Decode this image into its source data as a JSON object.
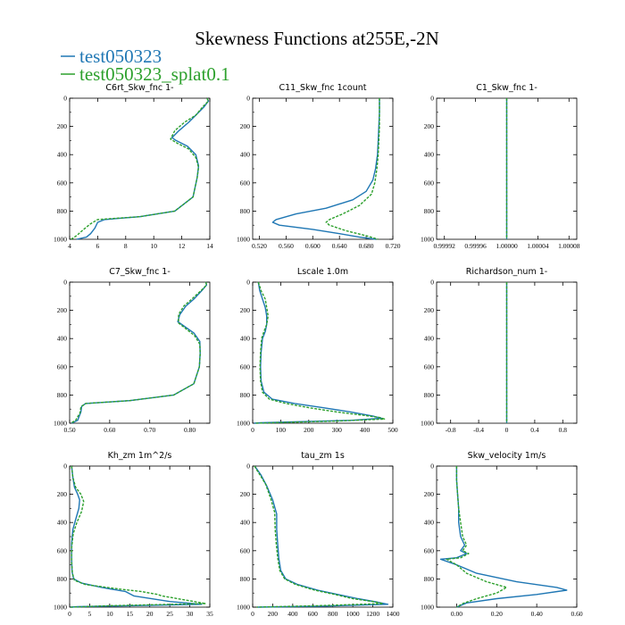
{
  "figure": {
    "title": "Skewness Functions at255E,-2N"
  },
  "legend": [
    {
      "label": "test050323",
      "color": "#1f77b4"
    },
    {
      "label": "test050323_splat0.1",
      "color": "#2ca02c"
    }
  ],
  "chart_data": [
    {
      "type": "line",
      "title": "C6rt_Skw_fnc  1-",
      "xlim": [
        4,
        14
      ],
      "ylim": [
        0,
        1000
      ],
      "yinverted": true,
      "xticks": [
        4,
        6,
        8,
        10,
        12,
        14
      ],
      "xticklabels": [
        "4",
        "6",
        "8",
        "10",
        "12",
        "14"
      ],
      "yticks": [
        0,
        200,
        400,
        600,
        800,
        1000
      ],
      "yticklabels": [
        "0",
        "200",
        "400",
        "600",
        "800",
        "1000"
      ],
      "series": [
        {
          "name": "test050323",
          "color": "#1f77b4",
          "x": [
            13.8,
            13.9,
            13.6,
            13.0,
            12.5,
            11.8,
            11.3,
            11.6,
            12.4,
            13.0,
            13.2,
            13.1,
            12.8,
            11.5,
            9.0,
            6.5,
            6.0,
            5.8,
            5.5,
            5.2,
            4.5
          ],
          "y": [
            0,
            20,
            60,
            120,
            170,
            230,
            280,
            300,
            340,
            400,
            480,
            560,
            700,
            800,
            840,
            860,
            880,
            920,
            960,
            985,
            1000
          ]
        },
        {
          "name": "test050323_splat0.1",
          "color": "#2ca02c",
          "x": [
            13.8,
            13.9,
            13.5,
            13.0,
            12.2,
            11.5,
            11.2,
            11.7,
            12.5,
            13.0,
            13.2,
            13.1,
            12.8,
            11.5,
            9.0,
            6.0,
            5.5,
            5.0,
            4.6,
            4.3,
            4.1
          ],
          "y": [
            0,
            20,
            60,
            120,
            170,
            230,
            290,
            320,
            360,
            420,
            490,
            560,
            700,
            800,
            840,
            860,
            890,
            930,
            965,
            988,
            1000
          ]
        }
      ]
    },
    {
      "type": "line",
      "title": "C11_Skw_fnc  1count",
      "xlim": [
        0.51,
        0.72
      ],
      "ylim": [
        0,
        1000
      ],
      "yinverted": true,
      "xticks": [
        0.52,
        0.56,
        0.6,
        0.64,
        0.68,
        0.72
      ],
      "xticklabels": [
        "0.520",
        "0.560",
        "0.600",
        "0.640",
        "0.680",
        "0.720"
      ],
      "yticks": [
        0,
        200,
        400,
        600,
        800,
        1000
      ],
      "yticklabels": [
        "0",
        "200",
        "400",
        "600",
        "800",
        "1000"
      ],
      "series": [
        {
          "name": "test050323",
          "color": "#1f77b4",
          "x": [
            0.7,
            0.7,
            0.699,
            0.698,
            0.697,
            0.694,
            0.69,
            0.68,
            0.66,
            0.62,
            0.575,
            0.545,
            0.54,
            0.55,
            0.6,
            0.64,
            0.67,
            0.695
          ],
          "y": [
            0,
            100,
            200,
            300,
            400,
            500,
            580,
            660,
            720,
            780,
            820,
            860,
            880,
            900,
            930,
            960,
            985,
            1000
          ]
        },
        {
          "name": "test050323_splat0.1",
          "color": "#2ca02c",
          "x": [
            0.7,
            0.7,
            0.7,
            0.699,
            0.698,
            0.696,
            0.693,
            0.688,
            0.67,
            0.645,
            0.625,
            0.62,
            0.625,
            0.65,
            0.68,
            0.698
          ],
          "y": [
            0,
            100,
            200,
            300,
            400,
            500,
            600,
            680,
            760,
            820,
            860,
            880,
            900,
            940,
            975,
            1000
          ]
        }
      ]
    },
    {
      "type": "line",
      "title": "C1_Skw_fnc  1-",
      "xlim": [
        0.99991,
        1.00009
      ],
      "ylim": [
        0,
        1000
      ],
      "yinverted": true,
      "xticks": [
        0.99992,
        0.99996,
        1.0,
        1.00004,
        1.00008
      ],
      "xticklabels": [
        "0.99992",
        "0.99996",
        "1.00000",
        "1.00004",
        "1.00008"
      ],
      "yticks": [
        0,
        200,
        400,
        600,
        800,
        1000
      ],
      "yticklabels": [
        "0",
        "200",
        "400",
        "600",
        "800",
        "1000"
      ],
      "series": [
        {
          "name": "test050323",
          "color": "#1f77b4",
          "x": [
            1.0,
            1.0
          ],
          "y": [
            0,
            1000
          ]
        },
        {
          "name": "test050323_splat0.1",
          "color": "#2ca02c",
          "x": [
            1.0,
            1.0
          ],
          "y": [
            0,
            1000
          ]
        }
      ]
    },
    {
      "type": "line",
      "title": "C7_Skw_fnc  1-",
      "xlim": [
        0.5,
        0.85
      ],
      "ylim": [
        0,
        1000
      ],
      "yinverted": true,
      "xticks": [
        0.5,
        0.6,
        0.7,
        0.8
      ],
      "xticklabels": [
        "0.50",
        "0.60",
        "0.70",
        "0.80"
      ],
      "yticks": [
        0,
        200,
        400,
        600,
        800,
        1000
      ],
      "yticklabels": [
        "0",
        "200",
        "400",
        "600",
        "800",
        "1000"
      ],
      "series": [
        {
          "name": "test050323",
          "color": "#1f77b4",
          "x": [
            0.84,
            0.842,
            0.83,
            0.81,
            0.79,
            0.775,
            0.77,
            0.785,
            0.81,
            0.825,
            0.826,
            0.824,
            0.81,
            0.76,
            0.65,
            0.54,
            0.53,
            0.528,
            0.52,
            0.505
          ],
          "y": [
            0,
            20,
            60,
            120,
            170,
            230,
            280,
            310,
            360,
            420,
            500,
            600,
            720,
            800,
            840,
            860,
            880,
            920,
            980,
            1000
          ]
        },
        {
          "name": "test050323_splat0.1",
          "color": "#2ca02c",
          "x": [
            0.84,
            0.842,
            0.828,
            0.805,
            0.785,
            0.772,
            0.772,
            0.79,
            0.812,
            0.825,
            0.826,
            0.824,
            0.81,
            0.76,
            0.65,
            0.54,
            0.528,
            0.526,
            0.515,
            0.503
          ],
          "y": [
            0,
            20,
            60,
            120,
            170,
            230,
            290,
            330,
            380,
            440,
            510,
            600,
            720,
            800,
            840,
            860,
            885,
            925,
            980,
            1000
          ]
        }
      ]
    },
    {
      "type": "line",
      "title": "Lscale  1.0m",
      "xlim": [
        0,
        500
      ],
      "ylim": [
        0,
        1000
      ],
      "yinverted": true,
      "xticks": [
        0,
        100,
        200,
        300,
        400,
        500
      ],
      "xticklabels": [
        "0",
        "100",
        "200",
        "300",
        "400",
        "500"
      ],
      "yticks": [
        0,
        200,
        400,
        600,
        800,
        1000
      ],
      "yticklabels": [
        "0",
        "200",
        "400",
        "600",
        "800",
        "1000"
      ],
      "series": [
        {
          "name": "test050323",
          "color": "#1f77b4",
          "x": [
            20,
            25,
            35,
            45,
            50,
            50,
            45,
            35,
            30,
            28,
            30,
            40,
            70,
            150,
            250,
            350,
            430,
            460,
            350,
            150,
            30,
            5
          ],
          "y": [
            0,
            60,
            120,
            180,
            240,
            300,
            350,
            400,
            500,
            600,
            700,
            780,
            830,
            860,
            890,
            920,
            950,
            965,
            980,
            990,
            997,
            1000
          ]
        },
        {
          "name": "test050323_splat0.1",
          "color": "#2ca02c",
          "x": [
            20,
            30,
            45,
            50,
            55,
            50,
            40,
            32,
            28,
            26,
            28,
            35,
            60,
            120,
            200,
            300,
            400,
            455,
            470,
            300,
            100,
            10
          ],
          "y": [
            0,
            60,
            120,
            180,
            240,
            300,
            350,
            400,
            500,
            600,
            700,
            780,
            830,
            860,
            890,
            920,
            945,
            960,
            970,
            985,
            995,
            1000
          ]
        }
      ]
    },
    {
      "type": "line",
      "title": "Richardson_num  1-",
      "xlim": [
        -1,
        1
      ],
      "ylim": [
        0,
        1000
      ],
      "yinverted": true,
      "xticks": [
        -0.8,
        -0.4,
        0,
        0.4,
        0.8
      ],
      "xticklabels": [
        "-0.8",
        "-0.4",
        "0",
        "0.4",
        "0.8"
      ],
      "yticks": [
        0,
        200,
        400,
        600,
        800,
        1000
      ],
      "yticklabels": [
        "0",
        "200",
        "400",
        "600",
        "800",
        "1000"
      ],
      "series": [
        {
          "name": "test050323",
          "color": "#1f77b4",
          "x": [
            0,
            0
          ],
          "y": [
            0,
            1000
          ]
        },
        {
          "name": "test050323_splat0.1",
          "color": "#2ca02c",
          "x": [
            0,
            0
          ],
          "y": [
            0,
            1000
          ]
        }
      ]
    },
    {
      "type": "line",
      "title": "Kh_zm  1m^2/s",
      "xlim": [
        0,
        35
      ],
      "ylim": [
        0,
        1000
      ],
      "yinverted": true,
      "xticks": [
        0,
        5,
        10,
        15,
        20,
        25,
        30,
        35
      ],
      "xticklabels": [
        "0",
        "5",
        "10",
        "15",
        "20",
        "25",
        "30",
        "35"
      ],
      "yticks": [
        0,
        200,
        400,
        600,
        800,
        1000
      ],
      "yticklabels": [
        "0",
        "200",
        "400",
        "600",
        "800",
        "1000"
      ],
      "series": [
        {
          "name": "test050323",
          "color": "#1f77b4",
          "x": [
            0.5,
            0.8,
            1.2,
            2.0,
            2.5,
            2.3,
            1.5,
            0.8,
            0.5,
            0.5,
            0.6,
            1.0,
            3.0,
            8.0,
            14.0,
            16.0,
            25.0,
            33.0,
            15.0,
            2.0,
            0.2
          ],
          "y": [
            0,
            80,
            150,
            200,
            240,
            300,
            380,
            450,
            550,
            650,
            750,
            800,
            830,
            860,
            890,
            920,
            960,
            980,
            990,
            997,
            1000
          ]
        },
        {
          "name": "test050323_splat0.1",
          "color": "#2ca02c",
          "x": [
            0.5,
            0.8,
            1.5,
            2.8,
            3.5,
            3.0,
            1.8,
            0.9,
            0.5,
            0.5,
            0.7,
            1.2,
            4.0,
            12.0,
            18.0,
            22.0,
            23.0,
            30.0,
            34.0,
            10.0,
            0.3
          ],
          "y": [
            0,
            80,
            150,
            200,
            250,
            320,
            400,
            480,
            580,
            680,
            760,
            810,
            840,
            870,
            890,
            910,
            920,
            955,
            975,
            990,
            1000
          ]
        }
      ]
    },
    {
      "type": "line",
      "title": "tau_zm  1s",
      "xlim": [
        0,
        1400
      ],
      "ylim": [
        0,
        1000
      ],
      "yinverted": true,
      "xticks": [
        0,
        200,
        400,
        600,
        800,
        1000,
        1200,
        1400
      ],
      "xticklabels": [
        "0",
        "200",
        "400",
        "600",
        "800",
        "1000",
        "1200",
        "1400"
      ],
      "yticks": [
        0,
        200,
        400,
        600,
        800,
        1000
      ],
      "yticklabels": [
        "0",
        "200",
        "400",
        "600",
        "800",
        "1000"
      ],
      "series": [
        {
          "name": "test050323",
          "color": "#1f77b4",
          "x": [
            20,
            40,
            80,
            140,
            200,
            240,
            240,
            250,
            260,
            280,
            330,
            450,
            650,
            850,
            1050,
            1250,
            1350,
            700,
            50
          ],
          "y": [
            0,
            20,
            60,
            140,
            240,
            340,
            450,
            550,
            650,
            740,
            800,
            840,
            880,
            910,
            940,
            965,
            980,
            993,
            1000
          ]
        },
        {
          "name": "test050323_splat0.1",
          "color": "#2ca02c",
          "x": [
            20,
            35,
            70,
            130,
            180,
            220,
            225,
            235,
            250,
            270,
            320,
            430,
            620,
            820,
            1000,
            1200,
            1300,
            650,
            40
          ],
          "y": [
            0,
            20,
            60,
            130,
            230,
            330,
            450,
            550,
            650,
            740,
            800,
            840,
            880,
            910,
            940,
            960,
            975,
            990,
            1000
          ]
        }
      ]
    },
    {
      "type": "line",
      "title": "Skw_velocity  1m/s",
      "xlim": [
        -0.1,
        0.6
      ],
      "ylim": [
        0,
        1000
      ],
      "yinverted": true,
      "xticks": [
        0,
        0.2,
        0.4,
        0.6
      ],
      "xticklabels": [
        "0.00",
        "0.20",
        "0.40",
        "0.60"
      ],
      "yticks": [
        0,
        200,
        400,
        600,
        800,
        1000
      ],
      "yticklabels": [
        "0",
        "200",
        "400",
        "600",
        "800",
        "1000"
      ],
      "series": [
        {
          "name": "test050323",
          "color": "#1f77b4",
          "x": [
            0.0,
            0.0,
            0.005,
            0.01,
            0.01,
            0.02,
            0.04,
            0.02,
            0.05,
            0.0,
            -0.08,
            0.0,
            0.1,
            0.3,
            0.5,
            0.55,
            0.4,
            0.2,
            0.05,
            0.0
          ],
          "y": [
            0,
            100,
            200,
            300,
            400,
            500,
            560,
            600,
            620,
            650,
            660,
            700,
            760,
            820,
            860,
            880,
            910,
            940,
            970,
            1000
          ]
        },
        {
          "name": "test050323_splat0.1",
          "color": "#2ca02c",
          "x": [
            0.0,
            0.0,
            0.005,
            0.01,
            0.02,
            0.03,
            0.05,
            0.03,
            0.06,
            0.02,
            -0.05,
            0.0,
            0.05,
            0.15,
            0.25,
            0.2,
            0.1,
            0.03,
            0.0
          ],
          "y": [
            0,
            100,
            200,
            300,
            400,
            500,
            560,
            600,
            620,
            650,
            660,
            700,
            760,
            820,
            860,
            900,
            940,
            975,
            1000
          ]
        }
      ]
    }
  ]
}
